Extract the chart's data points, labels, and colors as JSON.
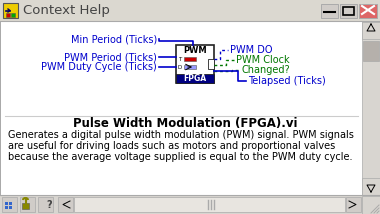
{
  "title": "Context Help",
  "vi_title": "Pulse Width Modulation (FPGA).vi",
  "description": "Generates a digital pulse width modulation (PWM) signal. PWM signals\nare useful for driving loads such as motors and proportional valves\nbecause the average voltage supplied is equal to the PWM duty cycle.",
  "inputs": [
    "Min Period (Ticks)",
    "PWM Period (Ticks)",
    "PWM Duty Cycle (Ticks)"
  ],
  "outputs": [
    "PWM DO",
    "PWM Clock",
    "Changed?",
    "Telapsed (Ticks)"
  ],
  "fpga_label": "FPGA",
  "pwm_label": "PWM",
  "bg_color": "#e8e8e8",
  "window_bg": "#ffffff",
  "title_bar_color": "#e0ddd8",
  "input_color": "#0000cc",
  "output_green": "#007700",
  "output_blue": "#0000cc",
  "fpga_block_bg": "#000080",
  "vi_title_fontsize": 8.5,
  "desc_fontsize": 7.0,
  "label_fontsize": 7.0,
  "title_fontsize": 9.5
}
